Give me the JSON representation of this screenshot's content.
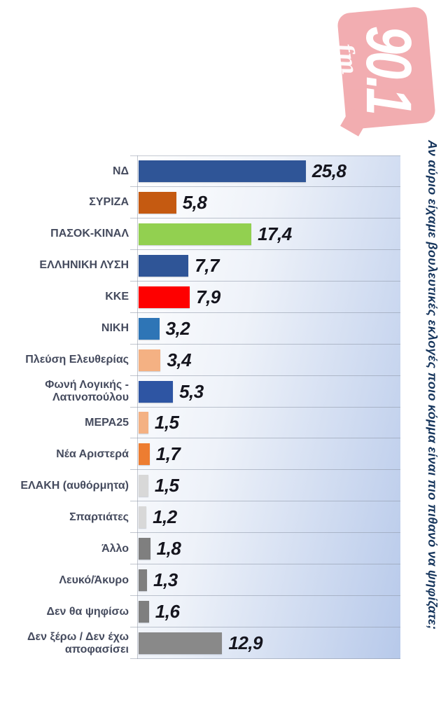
{
  "page": {
    "background": "#ffffff"
  },
  "logo": {
    "frequency": "90.1",
    "band": "fm",
    "shape_color": "#ef999d",
    "text_color": "#ffffff",
    "rotation": "90deg clockwise"
  },
  "question": {
    "text": "Αν αύριο είχαμε βουλευτικές εκλογές ποιο κόμμα είναι πιο πιθανό να ψηφίζατε;",
    "color": "#17365d",
    "rotation": "90deg clockwise"
  },
  "chart_data": {
    "type": "bar",
    "orientation": "horizontal",
    "title": "",
    "legend": "none",
    "grid": "category separators only",
    "decimal_separator": ",",
    "xlim": [
      0,
      40.4
    ],
    "categories": [
      "ΝΔ",
      "ΣΥΡΙΖΑ",
      "ΠΑΣΟΚ-ΚΙΝΑΛ",
      "ΕΛΛΗΝΙΚΗ ΛΥΣΗ",
      "ΚΚΕ",
      "ΝΙΚΗ",
      "Πλεύση Ελευθερίας",
      "Φωνή Λογικής - Λατινοπούλου",
      "ΜΕΡΑ25",
      "Νέα Αριστερά",
      "ΕΛΑΚΗ (αυθόρμητα)",
      "Σπαρτιάτες",
      "Άλλο",
      "Λευκό/Άκυρο",
      "Δεν θα ψηφίσω",
      "Δεν ξέρω / Δεν έχω αποφασίσει"
    ],
    "values": [
      25.8,
      5.8,
      17.4,
      7.7,
      7.9,
      3.2,
      3.4,
      5.3,
      1.5,
      1.7,
      1.5,
      1.2,
      1.8,
      1.3,
      1.6,
      12.9
    ],
    "value_labels": [
      "25,8",
      "5,8",
      "17,4",
      "7,7",
      "7,9",
      "3,2",
      "3,4",
      "5,3",
      "1,5",
      "1,7",
      "1,5",
      "1,2",
      "1,8",
      "1,3",
      "1,6",
      "12,9"
    ],
    "bar_colors": [
      "#2F5597",
      "#C55A11",
      "#92D050",
      "#2F5597",
      "#FE0000",
      "#2E75B6",
      "#F4B183",
      "#2E55A3",
      "#F4B183",
      "#ED7D31",
      "#D8D8D8",
      "#D8D8D8",
      "#7F7F7F",
      "#7F7F7F",
      "#7F7F7F",
      "#898989"
    ],
    "styles": {
      "label_color": "#454b5e",
      "value_color": "#15151e",
      "plot_gradient": [
        "#ffffff",
        "#eef2f9",
        "#b7c9ea"
      ],
      "separator_color": "#8c96a6"
    }
  }
}
